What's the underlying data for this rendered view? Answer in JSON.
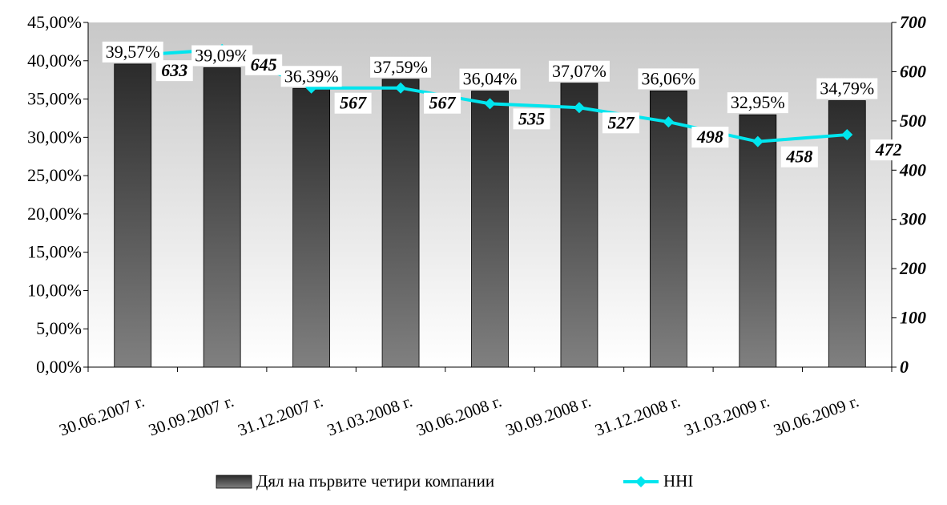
{
  "chart_data": {
    "type": "bar",
    "categories": [
      "30.06.2007 г.",
      "30.09.2007 г.",
      "31.12.2007 г.",
      "31.03.2008 г.",
      "30.06.2008 г.",
      "30.09.2008 г.",
      "31.12.2008 г.",
      "31.03.2009 г.",
      "30.06.2009 г."
    ],
    "series": [
      {
        "name": "Дял на първите четири компании",
        "type": "bar",
        "axis": "left",
        "values": [
          39.57,
          39.09,
          36.39,
          37.59,
          36.04,
          37.07,
          36.06,
          32.95,
          34.79
        ],
        "labels": [
          "39,57%",
          "39,09%",
          "36,39%",
          "37,59%",
          "36,04%",
          "37,07%",
          "36,06%",
          "32,95%",
          "34,79%"
        ],
        "color": "#3a3a3a"
      },
      {
        "name": "HHI",
        "type": "line",
        "axis": "right",
        "values": [
          633,
          645,
          567,
          567,
          535,
          527,
          498,
          458,
          472
        ],
        "labels": [
          "633",
          "645",
          "567",
          "567",
          "535",
          "527",
          "498",
          "458",
          "472"
        ],
        "color": "#00e5ee"
      }
    ],
    "left_axis": {
      "ylim": [
        0,
        45
      ],
      "ticks": [
        "0,00%",
        "5,00%",
        "10,00%",
        "15,00%",
        "20,00%",
        "25,00%",
        "30,00%",
        "35,00%",
        "40,00%",
        "45,00%"
      ]
    },
    "right_axis": {
      "ylim": [
        0,
        700
      ],
      "ticks": [
        "0",
        "100",
        "200",
        "300",
        "400",
        "500",
        "600",
        "700"
      ]
    },
    "legend_placement": "bottom",
    "plot_background": "gradient gray-to-white"
  }
}
